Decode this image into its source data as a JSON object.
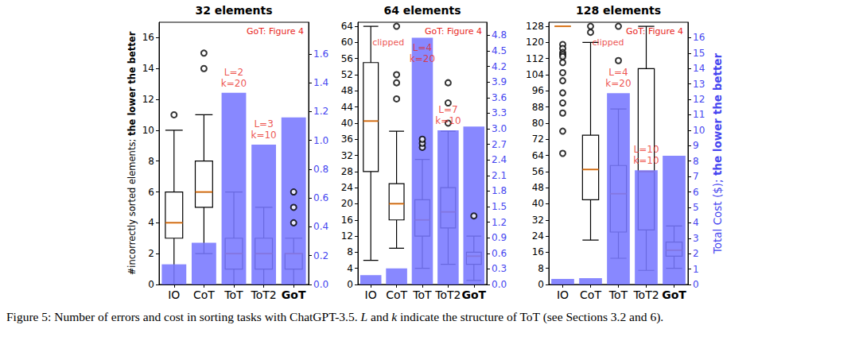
{
  "caption": "Figure 5: Number of errors and cost in sorting tasks with ChatGPT-3.5. L and k indicate the structure of ToT (see Sections 3.2 and 6).",
  "chart_data": [
    {
      "type": "boxplot",
      "title": "32 elements",
      "categories": [
        "IO",
        "CoT",
        "ToT",
        "ToT2",
        "GoT"
      ],
      "ylabel": "#incorrectly sorted elements; the lower the better",
      "ylim": [
        0,
        17
      ],
      "yticks": [
        0,
        2,
        4,
        6,
        8,
        10,
        12,
        14,
        16
      ],
      "y2lim": [
        0,
        1.82
      ],
      "y2ticks": [
        {
          "value": 0,
          "label": "0.0"
        },
        0.2,
        0.4,
        0.6,
        0.8,
        {
          "value": 1,
          "label": "1.0"
        },
        1.2,
        1.4,
        1.6
      ],
      "series": [
        {
          "type": "boxplot",
          "color": "#000000",
          "values": [
            [
              0,
              3,
              4,
              6,
              10
            ],
            [
              2,
              5,
              6,
              8,
              11
            ],
            [
              0,
              1,
              2,
              3,
              6
            ],
            [
              0,
              1,
              2,
              3,
              5
            ],
            [
              0,
              1,
              2,
              2,
              3
            ]
          ],
          "outliers": [
            [
              11
            ],
            [
              14,
              15
            ],
            [],
            [],
            [
              4,
              5,
              6
            ]
          ]
        },
        {
          "type": "bar",
          "axis": "y2",
          "color": "#7878ff",
          "values": [
            0.14,
            0.29,
            1.33,
            0.97,
            1.16
          ]
        }
      ],
      "corner_note": "GoT: Figure 4",
      "structure_notes": [
        {
          "text": "L=2\nk=20",
          "category": "ToT"
        },
        {
          "text": "L=3\nk=10",
          "category": "ToT2"
        }
      ]
    },
    {
      "type": "boxplot",
      "title": "64 elements",
      "categories": [
        "IO",
        "CoT",
        "ToT",
        "ToT2",
        "GoT"
      ],
      "ylim": [
        0,
        65
      ],
      "yticks": [
        0,
        4,
        8,
        12,
        16,
        20,
        24,
        28,
        32,
        36,
        40,
        44,
        48,
        52,
        56,
        60,
        64
      ],
      "y2lim": [
        0,
        5.05
      ],
      "y2ticks": [
        {
          "value": 0,
          "label": "0.0"
        },
        0.3,
        0.6,
        0.9,
        1.2,
        1.5,
        1.8,
        2.1,
        2.4,
        2.7,
        {
          "value": 3,
          "label": "3.0"
        },
        3.3,
        3.6,
        3.9,
        4.2,
        4.5,
        4.8
      ],
      "series": [
        {
          "type": "boxplot",
          "color": "#000000",
          "values": [
            [
              6,
              28,
              40.5,
              55,
              64
            ],
            [
              9,
              16,
              20,
              25,
              38
            ],
            [
              4,
              12,
              16,
              21,
              31
            ],
            [
              5,
              14,
              18,
              24,
              38
            ],
            [
              1,
              5,
              7,
              8,
              12
            ]
          ],
          "outliers": [
            [],
            [
              46,
              50,
              52,
              64
            ],
            [
              34,
              35,
              36
            ],
            [
              40,
              45,
              50
            ],
            [
              17
            ]
          ]
        },
        {
          "type": "bar",
          "axis": "y2",
          "color": "#7878ff",
          "values": [
            0.18,
            0.31,
            4.75,
            2.97,
            3.04
          ]
        }
      ],
      "corner_note": "GoT: Figure 4",
      "clip_note": {
        "text": "clipped",
        "category": "IO"
      },
      "structure_notes": [
        {
          "text": "L=4\nk=20",
          "category": "ToT"
        },
        {
          "text": "L=7\nk=10",
          "category": "ToT2"
        }
      ]
    },
    {
      "type": "boxplot",
      "title": "128 elements",
      "categories": [
        "IO",
        "CoT",
        "ToT",
        "ToT2",
        "GoT"
      ],
      "y2label": "Total Cost ($); the lower the better",
      "ylim": [
        0,
        130
      ],
      "yticks": [
        0,
        8,
        16,
        24,
        32,
        40,
        48,
        56,
        64,
        72,
        80,
        88,
        96,
        104,
        112,
        120,
        128
      ],
      "y2lim": [
        0,
        17
      ],
      "y2ticks": [
        0,
        1,
        2,
        3,
        4,
        5,
        6,
        7,
        8,
        9,
        10,
        11,
        12,
        13,
        14,
        15,
        16
      ],
      "series": [
        {
          "type": "boxplot",
          "color": "#000000",
          "values": [
            [
              128,
              128,
              128,
              128,
              128
            ],
            [
              22,
              42,
              57,
              74,
              120
            ],
            [
              13,
              26,
              45,
              59,
              87
            ],
            [
              7,
              27,
              56,
              107,
              128
            ],
            [
              8,
              14,
              17,
              21,
              29
            ]
          ],
          "outliers": [
            [
              119,
              117,
              115,
              114,
              113,
              110,
              105,
              101,
              95,
              90,
              85,
              76,
              65
            ],
            [
              125,
              128
            ],
            [
              111,
              128
            ],
            [],
            []
          ]
        },
        {
          "type": "bar",
          "axis": "y2",
          "color": "#7878ff",
          "values": [
            0.36,
            0.41,
            12.4,
            7.4,
            8.35
          ]
        }
      ],
      "corner_note": "GoT: Figure 4",
      "clip_note": {
        "text": "clipped",
        "category": "CoT"
      },
      "structure_notes": [
        {
          "text": "L=4\nk=20",
          "category": "ToT"
        },
        {
          "text": "L=10\nk=10",
          "category": "ToT2"
        }
      ]
    }
  ]
}
